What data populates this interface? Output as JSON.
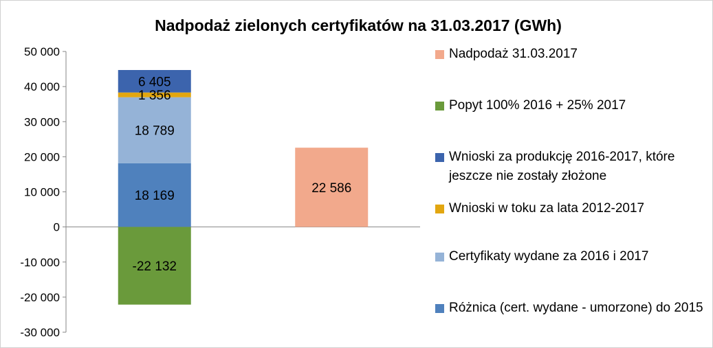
{
  "chart_data": {
    "type": "bar",
    "stacked": true,
    "title": "Nadpodaż zielonych certyfikatów na 31.03.2017 (GWh)",
    "xlabel": "",
    "ylabel": "",
    "ylim": [
      -30000,
      50000
    ],
    "yticks": [
      50000,
      40000,
      30000,
      20000,
      10000,
      0,
      -10000,
      -20000,
      -30000
    ],
    "ytick_labels": [
      "50 000",
      "40 000",
      "30 000",
      "20 000",
      "10 000",
      "0",
      "-10 000",
      "-20 000",
      "-30 000"
    ],
    "grid": false,
    "legend_position": "right",
    "categories": [
      "",
      ""
    ],
    "series": [
      {
        "name": "Różnica (cert. wydane - umorzone) do 2015",
        "color": "#4f81bd",
        "values": [
          18169,
          null
        ],
        "labels": [
          "18 169",
          ""
        ]
      },
      {
        "name": "Certyfikaty wydane za 2016 i 2017",
        "color": "#95b3d7",
        "values": [
          18789,
          null
        ],
        "labels": [
          "18 789",
          ""
        ]
      },
      {
        "name": "Wnioski w toku za lata 2012-2017",
        "color": "#e2a610",
        "values": [
          1356,
          null
        ],
        "labels": [
          "1 356",
          ""
        ]
      },
      {
        "name": "Wnioski za produkcję 2016-2017, które jeszcze nie zostały złożone",
        "color": "#3c64ad",
        "values": [
          6405,
          null
        ],
        "labels": [
          "6 405",
          ""
        ]
      },
      {
        "name": "Popyt 100% 2016 + 25% 2017",
        "color": "#6a9a3b",
        "values": [
          -22132,
          null
        ],
        "labels": [
          "-22 132",
          ""
        ]
      },
      {
        "name": "Nadpodaż 31.03.2017",
        "color": "#f2a98c",
        "values": [
          null,
          22586
        ],
        "labels": [
          "",
          "22 586"
        ]
      }
    ],
    "legend_order": [
      5,
      4,
      3,
      2,
      1,
      0
    ]
  }
}
